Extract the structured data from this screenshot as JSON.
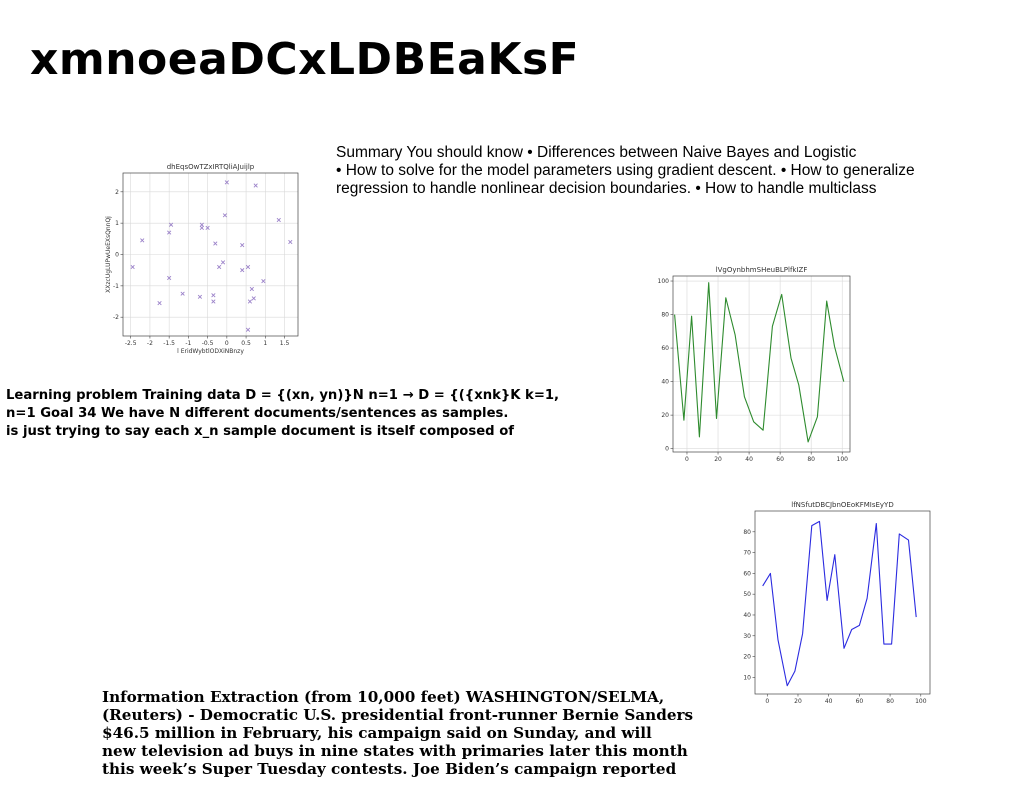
{
  "slide": {
    "title": "xmnoeaDCxLDBEaKsF",
    "summary_lines": [
      "Summary You should know • Differences between Naive Bayes and Logistic",
      "• How to solve for the model parameters using gradient descent. • How to generalize",
      "regression to handle nonlinear decision boundaries. • How to handle multiclass"
    ],
    "learning_lines": [
      "Learning problem Training data D = {(xn, yn)}N n=1 → D = {({xnk}K k=1,",
      "n=1 Goal 34 We have N different documents/sentences as samples.",
      "is just trying to say each x_n sample document is itself composed of"
    ],
    "info_lines": [
      "Information Extraction (from 10,000 feet) WASHINGTON/SELMA,",
      "(Reuters) - Democratic U.S. presidential front-runner Bernie Sanders",
      "$46.5 million in February, his campaign said on Sunday, and will",
      "new television ad buys in nine states with primaries later this month",
      "this week’s Super Tuesday contests. Joe Biden’s campaign reported"
    ]
  },
  "chart_data": [
    {
      "type": "scatter",
      "title": "dhEqsOwTZxIRTQliAJuijlp",
      "xlabel": "l EridWybtlODXiNBnzy",
      "ylabel": "XXzcUgLUPwUeEXsQnnQj",
      "xlim": [
        -2.7,
        1.85
      ],
      "ylim": [
        -2.6,
        2.6
      ],
      "xticks": [
        -2.5,
        -2.0,
        -1.5,
        -1.0,
        -0.5,
        0.0,
        0.5,
        1.0,
        1.5
      ],
      "yticks": [
        -2,
        -1,
        0,
        1,
        2
      ],
      "grid": true,
      "marker": "x",
      "color": "#9b82c9",
      "points": [
        [
          -2.45,
          -0.4
        ],
        [
          -2.2,
          0.45
        ],
        [
          -1.75,
          -1.55
        ],
        [
          -1.5,
          -0.75
        ],
        [
          -1.5,
          0.7
        ],
        [
          -1.45,
          0.95
        ],
        [
          -1.15,
          -1.25
        ],
        [
          -0.7,
          -1.35
        ],
        [
          -0.65,
          0.95
        ],
        [
          -0.65,
          0.85
        ],
        [
          -0.5,
          0.85
        ],
        [
          -0.35,
          -1.3
        ],
        [
          -0.35,
          -1.5
        ],
        [
          -0.3,
          0.35
        ],
        [
          -0.2,
          -0.4
        ],
        [
          -0.1,
          -0.25
        ],
        [
          -0.05,
          1.25
        ],
        [
          0.0,
          2.3
        ],
        [
          0.4,
          -0.5
        ],
        [
          0.4,
          0.3
        ],
        [
          0.55,
          -0.4
        ],
        [
          0.55,
          -2.4
        ],
        [
          0.6,
          -1.5
        ],
        [
          0.65,
          -1.1
        ],
        [
          0.7,
          -1.4
        ],
        [
          0.75,
          2.2
        ],
        [
          0.95,
          -0.85
        ],
        [
          1.35,
          1.1
        ],
        [
          1.65,
          0.4
        ]
      ]
    },
    {
      "type": "line",
      "title": "lVgOynbhmSHeuBLPlfkIZF",
      "xlim": [
        -9,
        105
      ],
      "ylim": [
        -2,
        103
      ],
      "xticks": [
        0,
        20,
        40,
        60,
        80,
        100
      ],
      "yticks": [
        0,
        20,
        40,
        60,
        80,
        100
      ],
      "grid": true,
      "color": "#2e8b2e",
      "x": [
        -8,
        -2,
        3,
        8,
        14,
        19,
        25,
        31,
        37,
        43,
        49,
        55,
        61,
        67,
        72,
        78,
        84,
        90,
        95,
        101
      ],
      "y": [
        80,
        17,
        79,
        7,
        99,
        18,
        90,
        68,
        31,
        16,
        11,
        73,
        92,
        54,
        38,
        4,
        19,
        88,
        61,
        40
      ]
    },
    {
      "type": "line",
      "title": "lfNSfutDBCJbnOEoKFMIsEyYD",
      "xlim": [
        -8,
        106
      ],
      "ylim": [
        2,
        90
      ],
      "xticks": [
        0,
        20,
        40,
        60,
        80,
        100
      ],
      "yticks": [
        10,
        20,
        30,
        40,
        50,
        60,
        70,
        80
      ],
      "grid": false,
      "color": "#2b2be0",
      "x": [
        -3,
        2,
        7,
        13,
        18,
        23,
        29,
        34,
        39,
        44,
        50,
        55,
        60,
        65,
        71,
        76,
        81,
        86,
        92,
        97
      ],
      "y": [
        54,
        60,
        28,
        6,
        13,
        31,
        83,
        85,
        47,
        69,
        24,
        33,
        35,
        48,
        84,
        26,
        26,
        79,
        76,
        39
      ]
    }
  ]
}
